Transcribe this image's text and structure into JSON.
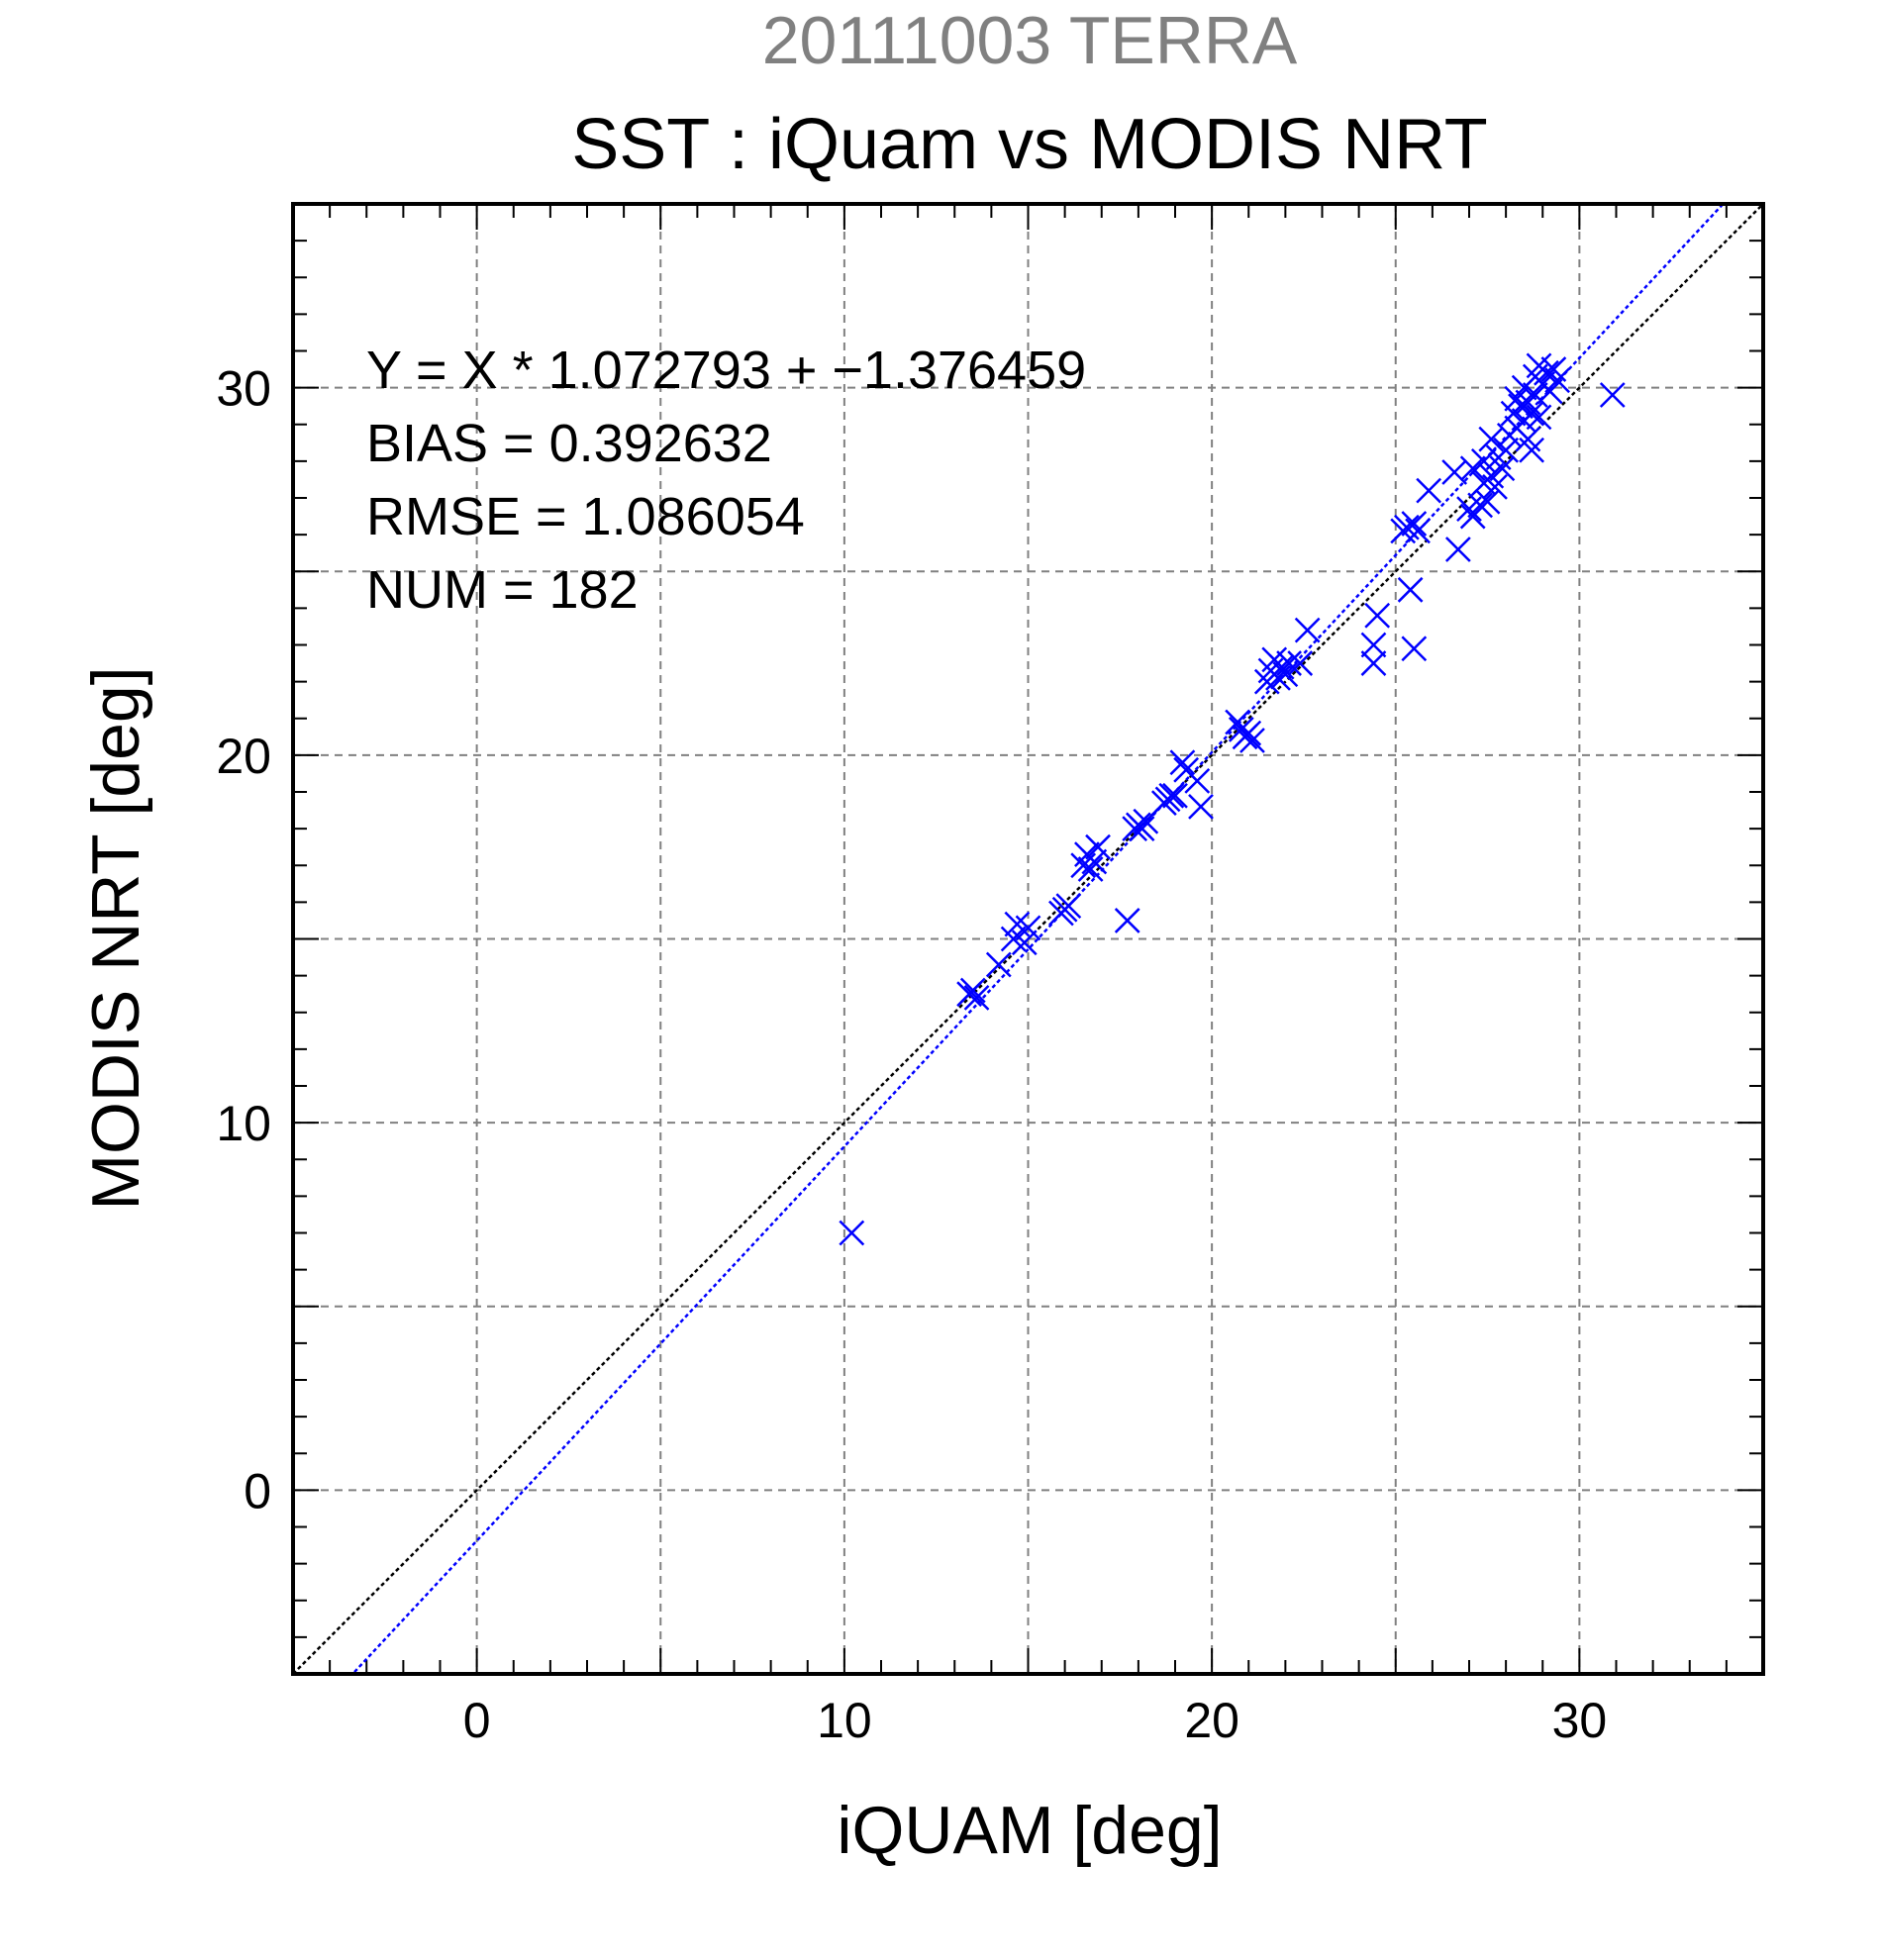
{
  "chart_data": {
    "type": "scatter",
    "supertitle": "20111003 TERRA",
    "title": "SST : iQuam vs MODIS NRT",
    "xlabel": "iQUAM [deg]",
    "ylabel": "MODIS NRT [deg]",
    "xlim": [
      -5,
      35
    ],
    "ylim": [
      -5,
      35
    ],
    "xticks": [
      0,
      10,
      20,
      30
    ],
    "yticks": [
      0,
      10,
      20,
      30
    ],
    "grid": true,
    "marker": "x",
    "colors": {
      "points": "#0000ff",
      "fit_line": "#0000ff",
      "identity_line": "#000000",
      "grid": "#808080"
    },
    "stats": [
      "Y = X * 1.072793 + −1.376459",
      "BIAS = 0.392632",
      "RMSE = 1.086054",
      "NUM = 182"
    ],
    "fit": {
      "slope": 1.072793,
      "intercept": -1.376459
    },
    "identity": {
      "slope": 1,
      "intercept": 0
    },
    "points": [
      [
        10.2,
        7.0
      ],
      [
        13.4,
        13.5
      ],
      [
        13.5,
        13.6
      ],
      [
        13.6,
        13.4
      ],
      [
        14.2,
        14.3
      ],
      [
        14.6,
        15.0
      ],
      [
        14.7,
        15.4
      ],
      [
        14.9,
        14.9
      ],
      [
        15.0,
        15.3
      ],
      [
        15.9,
        15.7
      ],
      [
        16.0,
        15.8
      ],
      [
        16.1,
        15.9
      ],
      [
        16.5,
        17.0
      ],
      [
        16.6,
        17.3
      ],
      [
        16.7,
        16.9
      ],
      [
        16.8,
        17.1
      ],
      [
        16.9,
        17.5
      ],
      [
        17.7,
        15.5
      ],
      [
        17.9,
        18.0
      ],
      [
        18.0,
        18.1
      ],
      [
        18.1,
        18.0
      ],
      [
        18.2,
        18.2
      ],
      [
        18.7,
        18.7
      ],
      [
        18.8,
        18.8
      ],
      [
        18.9,
        18.9
      ],
      [
        19.0,
        18.9
      ],
      [
        19.2,
        19.8
      ],
      [
        19.3,
        19.6
      ],
      [
        19.6,
        19.3
      ],
      [
        19.7,
        18.6
      ],
      [
        20.7,
        20.9
      ],
      [
        20.8,
        20.7
      ],
      [
        20.9,
        20.5
      ],
      [
        21.0,
        20.6
      ],
      [
        21.1,
        20.4
      ],
      [
        21.5,
        22.0
      ],
      [
        21.6,
        22.3
      ],
      [
        21.7,
        22.6
      ],
      [
        21.8,
        22.1
      ],
      [
        21.9,
        22.4
      ],
      [
        22.0,
        22.2
      ],
      [
        22.1,
        22.5
      ],
      [
        22.4,
        22.5
      ],
      [
        22.6,
        23.4
      ],
      [
        24.4,
        22.5
      ],
      [
        24.4,
        23.0
      ],
      [
        24.5,
        23.8
      ],
      [
        25.2,
        26.1
      ],
      [
        25.3,
        26.2
      ],
      [
        25.4,
        24.5
      ],
      [
        25.5,
        26.3
      ],
      [
        25.6,
        26.1
      ],
      [
        25.5,
        22.9
      ],
      [
        25.9,
        27.2
      ],
      [
        26.6,
        27.7
      ],
      [
        26.7,
        25.6
      ],
      [
        27.0,
        26.7
      ],
      [
        27.1,
        27.8
      ],
      [
        27.1,
        26.5
      ],
      [
        27.3,
        26.8
      ],
      [
        27.4,
        27.4
      ],
      [
        27.4,
        28.0
      ],
      [
        27.5,
        26.9
      ],
      [
        27.6,
        27.6
      ],
      [
        27.6,
        28.6
      ],
      [
        27.7,
        27.3
      ],
      [
        27.8,
        28.1
      ],
      [
        27.9,
        27.8
      ],
      [
        28.0,
        28.3
      ],
      [
        28.1,
        28.7
      ],
      [
        28.2,
        29.3
      ],
      [
        28.3,
        29.7
      ],
      [
        28.3,
        28.9
      ],
      [
        28.4,
        29.5
      ],
      [
        28.5,
        29.1
      ],
      [
        28.5,
        30.0
      ],
      [
        28.6,
        29.6
      ],
      [
        28.6,
        28.6
      ],
      [
        28.7,
        29.3
      ],
      [
        28.7,
        28.3
      ],
      [
        28.8,
        30.3
      ],
      [
        28.8,
        29.8
      ],
      [
        28.9,
        30.6
      ],
      [
        28.9,
        29.2
      ],
      [
        29.0,
        30.1
      ],
      [
        29.1,
        30.4
      ],
      [
        29.2,
        29.9
      ],
      [
        29.3,
        30.5
      ],
      [
        29.4,
        30.2
      ],
      [
        30.9,
        29.8
      ]
    ]
  }
}
